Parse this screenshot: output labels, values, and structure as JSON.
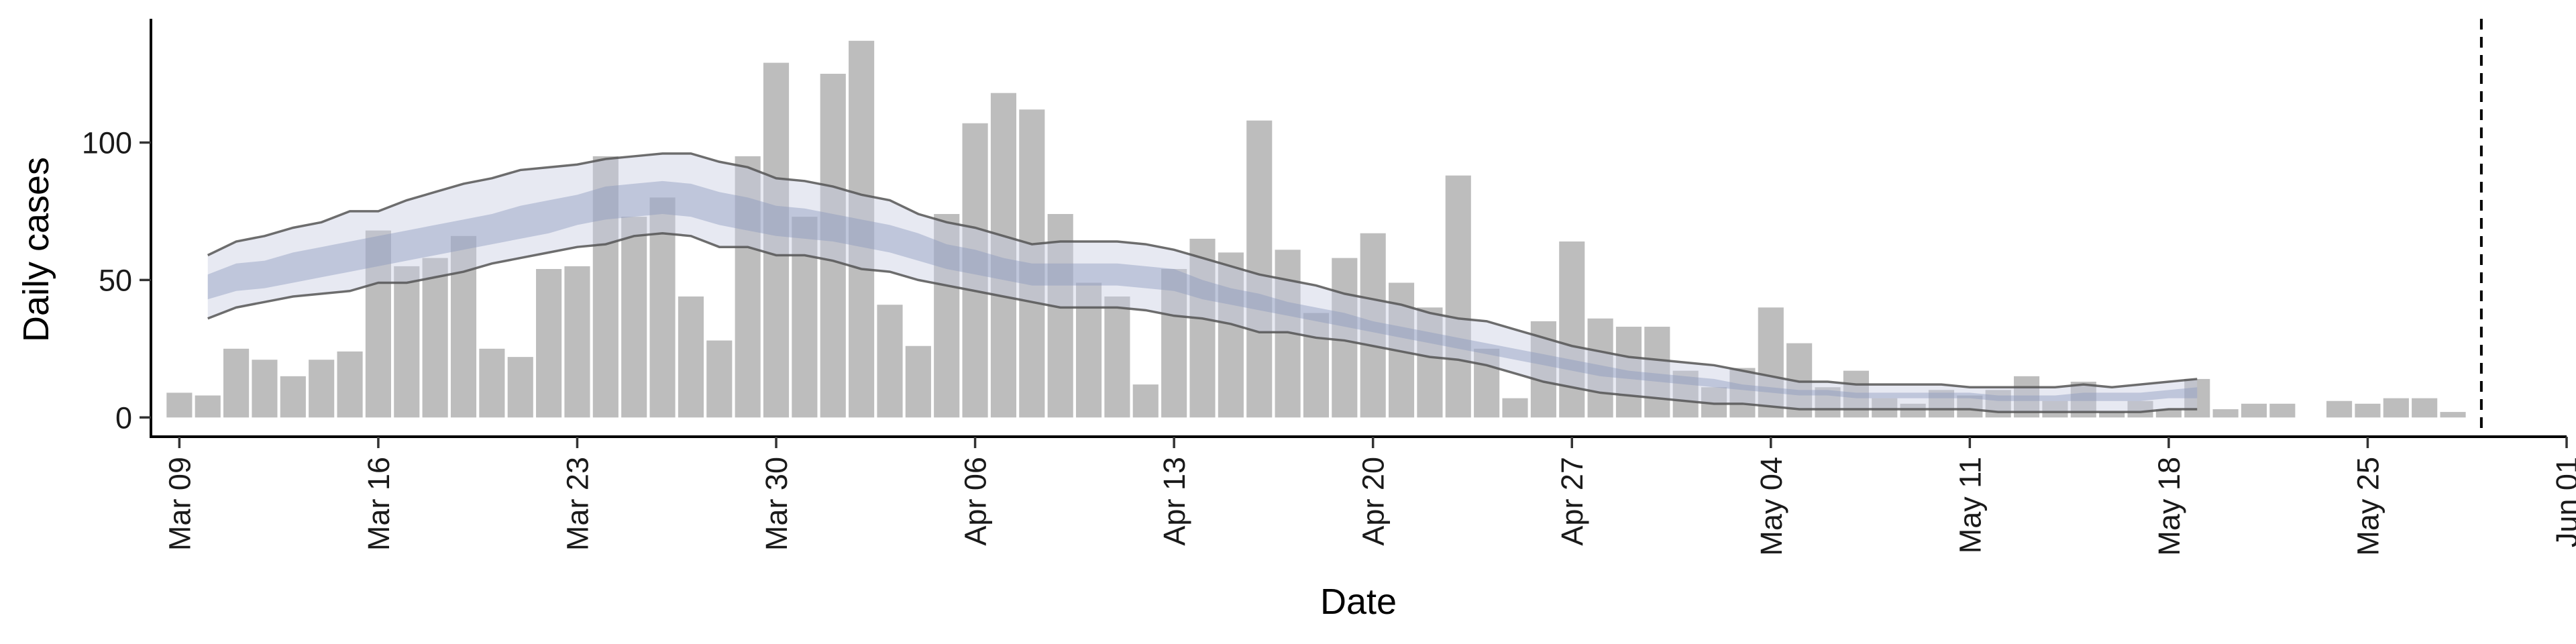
{
  "chart_data": {
    "type": "bar",
    "xlabel": "Date",
    "ylabel": "Daily cases",
    "x_axis": {
      "type": "date",
      "range": [
        "2020-03-08",
        "2020-06-01"
      ],
      "ticks": [
        "2020-03-09",
        "2020-03-16",
        "2020-03-23",
        "2020-03-30",
        "2020-04-06",
        "2020-04-13",
        "2020-04-20",
        "2020-04-27",
        "2020-05-04",
        "2020-05-11",
        "2020-05-18",
        "2020-05-25",
        "2020-06-01"
      ],
      "tick_labels": [
        "Mar 09",
        "Mar 16",
        "Mar 23",
        "Mar 30",
        "Apr 06",
        "Apr 13",
        "Apr 20",
        "Apr 27",
        "May 04",
        "May 11",
        "May 18",
        "May 25",
        "Jun 01"
      ]
    },
    "y_axis": {
      "range": [
        -7,
        145
      ],
      "ticks": [
        0,
        50,
        100
      ],
      "tick_labels": [
        "0",
        "50",
        "100"
      ]
    },
    "grid": false,
    "legend": "none",
    "bars": {
      "start_date": "2020-03-09",
      "values": [
        9,
        8,
        25,
        21,
        15,
        21,
        24,
        68,
        55,
        58,
        66,
        25,
        22,
        54,
        55,
        95,
        73,
        80,
        44,
        28,
        95,
        129,
        73,
        125,
        137,
        41,
        26,
        74,
        107,
        118,
        112,
        74,
        49,
        44,
        12,
        54,
        65,
        60,
        108,
        61,
        38,
        58,
        67,
        49,
        40,
        88,
        25,
        7,
        35,
        64,
        36,
        33,
        33,
        17,
        11,
        18,
        40,
        27,
        11,
        17,
        7,
        5,
        10,
        8,
        10,
        15,
        6,
        13,
        2,
        6,
        3,
        14,
        3,
        5,
        5,
        0,
        6,
        5,
        7,
        7,
        2
      ],
      "color": "#bdbdbd"
    },
    "estimate": {
      "start_date": "2020-03-10",
      "upper90": [
        59,
        64,
        66,
        69,
        71,
        75,
        75,
        79,
        82,
        85,
        87,
        90,
        91,
        92,
        94,
        95,
        96,
        96,
        93,
        91,
        87,
        86,
        84,
        81,
        79,
        74,
        71,
        69,
        66,
        63,
        64,
        64,
        64,
        63,
        61,
        58,
        55,
        52,
        50,
        48,
        45,
        43,
        41,
        38,
        36,
        35,
        32,
        29,
        26,
        24,
        22,
        21,
        20,
        19,
        17,
        15,
        13,
        13,
        12,
        12,
        12,
        12,
        11,
        11,
        11,
        11,
        12,
        11,
        12,
        13,
        14
      ],
      "upper50": [
        52,
        56,
        57,
        60,
        62,
        64,
        66,
        68,
        70,
        72,
        74,
        77,
        79,
        81,
        84,
        85,
        86,
        85,
        82,
        80,
        77,
        76,
        74,
        72,
        70,
        67,
        63,
        61,
        58,
        56,
        56,
        56,
        56,
        55,
        54,
        50,
        47,
        45,
        42,
        40,
        38,
        35,
        33,
        31,
        29,
        27,
        25,
        23,
        21,
        19,
        17,
        16,
        15,
        14,
        12,
        11,
        10,
        10,
        9,
        9,
        9,
        9,
        9,
        8,
        8,
        8,
        9,
        9,
        9,
        10,
        11
      ],
      "lower50": [
        43,
        46,
        47,
        49,
        51,
        53,
        55,
        57,
        59,
        61,
        63,
        65,
        67,
        70,
        72,
        73,
        74,
        73,
        70,
        68,
        66,
        65,
        64,
        62,
        60,
        57,
        54,
        52,
        50,
        48,
        48,
        48,
        48,
        47,
        46,
        43,
        41,
        39,
        37,
        35,
        33,
        31,
        29,
        27,
        25,
        23,
        21,
        19,
        17,
        15,
        14,
        13,
        12,
        11,
        10,
        9,
        8,
        8,
        7,
        7,
        7,
        7,
        7,
        6,
        6,
        6,
        6,
        6,
        6,
        7,
        7
      ],
      "lower90": [
        36,
        40,
        42,
        44,
        45,
        46,
        49,
        49,
        51,
        53,
        56,
        58,
        60,
        62,
        63,
        66,
        67,
        66,
        62,
        62,
        59,
        59,
        57,
        54,
        53,
        50,
        48,
        46,
        44,
        42,
        40,
        40,
        40,
        39,
        37,
        36,
        34,
        31,
        31,
        29,
        28,
        26,
        24,
        22,
        21,
        19,
        16,
        13,
        11,
        9,
        8,
        7,
        6,
        5,
        5,
        4,
        3,
        3,
        3,
        3,
        3,
        3,
        3,
        2,
        2,
        2,
        2,
        2,
        2,
        3,
        3
      ],
      "inner_color": "#8997bd",
      "outer_color": "#c5cadf",
      "line_color": "#555555"
    },
    "vline_date": "2020-05-29"
  }
}
